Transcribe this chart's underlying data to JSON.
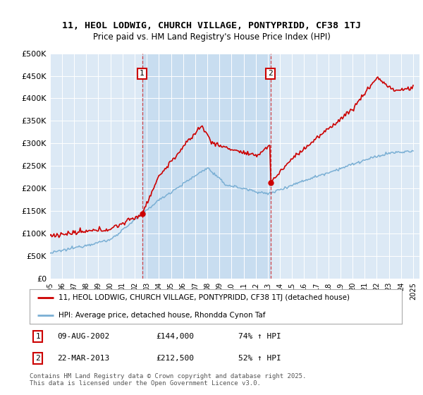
{
  "title": "11, HEOL LODWIG, CHURCH VILLAGE, PONTYPRIDD, CF38 1TJ",
  "subtitle": "Price paid vs. HM Land Registry's House Price Index (HPI)",
  "fig_bg_color": "#ffffff",
  "plot_bg_color": "#dce9f5",
  "highlight_bg_color": "#c8ddf0",
  "red_color": "#cc0000",
  "blue_color": "#7aafd4",
  "grid_color": "#b0c8e0",
  "annotation1": {
    "label": "1",
    "date": "09-AUG-2002",
    "price": 144000,
    "hpi_pct": "74% ↑ HPI"
  },
  "annotation2": {
    "label": "2",
    "date": "22-MAR-2013",
    "price": 212500,
    "hpi_pct": "52% ↑ HPI"
  },
  "legend_line1": "11, HEOL LODWIG, CHURCH VILLAGE, PONTYPRIDD, CF38 1TJ (detached house)",
  "legend_line2": "HPI: Average price, detached house, Rhondda Cynon Taf",
  "footnote": "Contains HM Land Registry data © Crown copyright and database right 2025.\nThis data is licensed under the Open Government Licence v3.0.",
  "ylim": [
    0,
    500000
  ],
  "yticks": [
    0,
    50000,
    100000,
    150000,
    200000,
    250000,
    300000,
    350000,
    400000,
    450000,
    500000
  ],
  "ytick_labels": [
    "£0",
    "£50K",
    "£100K",
    "£150K",
    "£200K",
    "£250K",
    "£300K",
    "£350K",
    "£400K",
    "£450K",
    "£500K"
  ],
  "sale1_t": 2002.614,
  "sale1_price": 144000,
  "sale2_t": 2013.208,
  "sale2_price": 212500
}
